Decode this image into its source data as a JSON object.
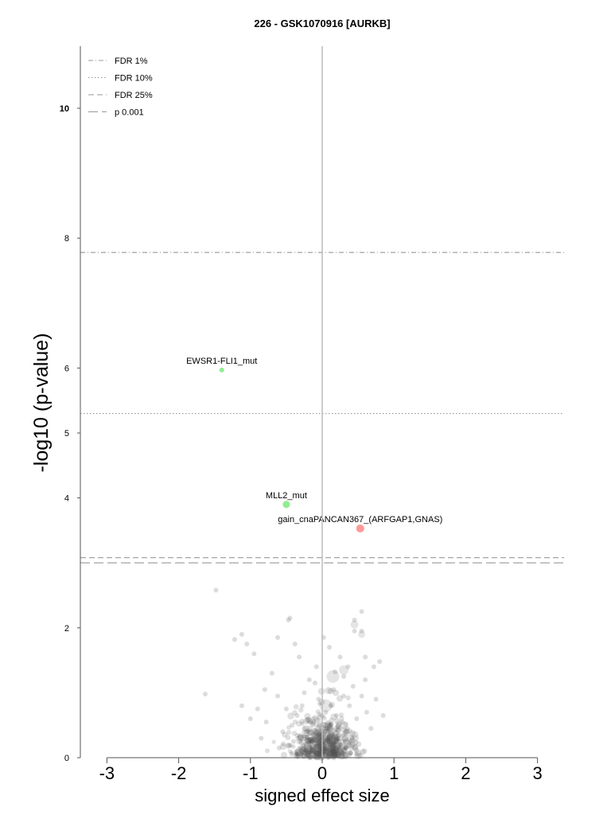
{
  "chart_data": {
    "type": "scatter",
    "title": "226 - GSK1070916 [AURKB]",
    "xlabel": "signed effect size",
    "ylabel": "-log10 (p-value)",
    "xlim": [
      -3,
      3
    ],
    "ylim": [
      0,
      11
    ],
    "xticks": [
      "-3",
      "-2",
      "-1",
      "0",
      "1",
      "2",
      "3"
    ],
    "yticks": [
      "0",
      "2",
      "4",
      "5",
      "6",
      "8",
      "10"
    ],
    "legend_position": "top-left",
    "thresholds": [
      {
        "name": "FDR 1%",
        "y": 7.78,
        "style": "dash-dot",
        "color": "#999999"
      },
      {
        "name": "FDR 10%",
        "y": 5.3,
        "style": "dotted",
        "color": "#999999"
      },
      {
        "name": "FDR 25%",
        "y": 3.08,
        "style": "dashed-short",
        "color": "#999999"
      },
      {
        "name": "p 0.001",
        "y": 3.0,
        "style": "dashed-long",
        "color": "#999999"
      }
    ],
    "highlighted_points": [
      {
        "label": "EWSR1-FLI1_mut",
        "x": -1.4,
        "y": 5.97,
        "color": "#90ee90",
        "r": 3
      },
      {
        "label": "MLL2_mut",
        "x": -0.5,
        "y": 3.9,
        "color": "#90ee90",
        "r": 4.5
      },
      {
        "label": "gain_cnaPANCAN367_(ARFGAP1,GNAS)",
        "x": 0.53,
        "y": 3.53,
        "color": "#ff9999",
        "r": 5
      }
    ],
    "background_points": [
      {
        "x": -1.48,
        "y": 2.58
      },
      {
        "x": -1.63,
        "y": 0.98
      },
      {
        "x": -1.22,
        "y": 1.82
      },
      {
        "x": -1.12,
        "y": 1.9
      },
      {
        "x": -1.05,
        "y": 1.75
      },
      {
        "x": -0.95,
        "y": 1.6
      },
      {
        "x": -0.62,
        "y": 1.85
      },
      {
        "x": -0.47,
        "y": 2.12
      },
      {
        "x": -0.45,
        "y": 2.15
      },
      {
        "x": 0.45,
        "y": 2.12
      },
      {
        "x": 0.45,
        "y": 1.95
      },
      {
        "x": 0.55,
        "y": 2.25
      },
      {
        "x": 0.55,
        "y": 1.95
      },
      {
        "x": 0.36,
        "y": 1.4
      },
      {
        "x": 0.72,
        "y": 1.4
      },
      {
        "x": 0.8,
        "y": 1.48
      },
      {
        "x": 0.6,
        "y": 1.2
      },
      {
        "x": 0.55,
        "y": 0.95
      },
      {
        "x": 0.43,
        "y": 1.1
      },
      {
        "x": 0.3,
        "y": 1.25
      },
      {
        "x": 0.18,
        "y": 1.32
      },
      {
        "x": 0.16,
        "y": 1.05
      },
      {
        "x": 0.12,
        "y": 0.8
      },
      {
        "x": 0.2,
        "y": 0.65
      },
      {
        "x": 0.28,
        "y": 0.55
      },
      {
        "x": 0.35,
        "y": 0.45
      },
      {
        "x": 0.05,
        "y": 0.7
      },
      {
        "x": -0.05,
        "y": 0.9
      },
      {
        "x": -0.1,
        "y": 1.15
      },
      {
        "x": -0.08,
        "y": 1.4
      },
      {
        "x": -0.18,
        "y": 1.2
      },
      {
        "x": -0.25,
        "y": 1.0
      },
      {
        "x": -0.28,
        "y": 0.8
      },
      {
        "x": -0.35,
        "y": 0.65
      },
      {
        "x": -0.42,
        "y": 0.5
      },
      {
        "x": -0.5,
        "y": 0.75
      },
      {
        "x": -0.55,
        "y": 0.4
      },
      {
        "x": -0.62,
        "y": 0.95
      },
      {
        "x": -0.7,
        "y": 1.3
      },
      {
        "x": -0.78,
        "y": 0.55
      },
      {
        "x": -0.85,
        "y": 0.3
      },
      {
        "x": -0.9,
        "y": 0.75
      },
      {
        "x": -1.0,
        "y": 0.6
      },
      {
        "x": -1.12,
        "y": 0.8
      },
      {
        "x": -0.32,
        "y": 1.55
      },
      {
        "x": 0.25,
        "y": 1.55
      },
      {
        "x": 0.25,
        "y": 0.2
      },
      {
        "x": 0.15,
        "y": 0.3
      },
      {
        "x": 0.08,
        "y": 0.45
      },
      {
        "x": -0.05,
        "y": 0.35
      },
      {
        "x": -0.12,
        "y": 0.55
      },
      {
        "x": -0.15,
        "y": 0.25
      },
      {
        "x": -0.2,
        "y": 0.4
      },
      {
        "x": 0.38,
        "y": 0.8
      },
      {
        "x": 0.48,
        "y": 0.6
      },
      {
        "x": 0.62,
        "y": 0.7
      },
      {
        "x": 0.68,
        "y": 0.45
      },
      {
        "x": 0.3,
        "y": 0.95
      },
      {
        "x": -0.02,
        "y": 0.15
      },
      {
        "x": 0.02,
        "y": 0.08
      },
      {
        "x": -0.3,
        "y": 0.12
      },
      {
        "x": 0.22,
        "y": 0.1
      },
      {
        "x": -0.4,
        "y": 0.25
      },
      {
        "x": 0.1,
        "y": 1.7
      },
      {
        "x": -0.38,
        "y": 1.75
      },
      {
        "x": 0.02,
        "y": 1.85
      },
      {
        "x": 0.6,
        "y": 1.55
      },
      {
        "x": -0.8,
        "y": 1.05
      },
      {
        "x": 0.75,
        "y": 0.9
      },
      {
        "x": 0.85,
        "y": 0.65
      },
      {
        "x": 0.42,
        "y": 0.3
      },
      {
        "x": -0.6,
        "y": 0.15
      }
    ],
    "big_points": [
      {
        "x": 0.15,
        "y": 1.25,
        "r": 8
      },
      {
        "x": 0.45,
        "y": 2.05,
        "r": 5
      },
      {
        "x": 0.55,
        "y": 1.9,
        "r": 4.5
      },
      {
        "x": 0.3,
        "y": 1.35,
        "r": 6
      },
      {
        "x": 0.05,
        "y": 0.8,
        "r": 8
      },
      {
        "x": 0.3,
        "y": 0.5,
        "r": 5
      }
    ]
  }
}
